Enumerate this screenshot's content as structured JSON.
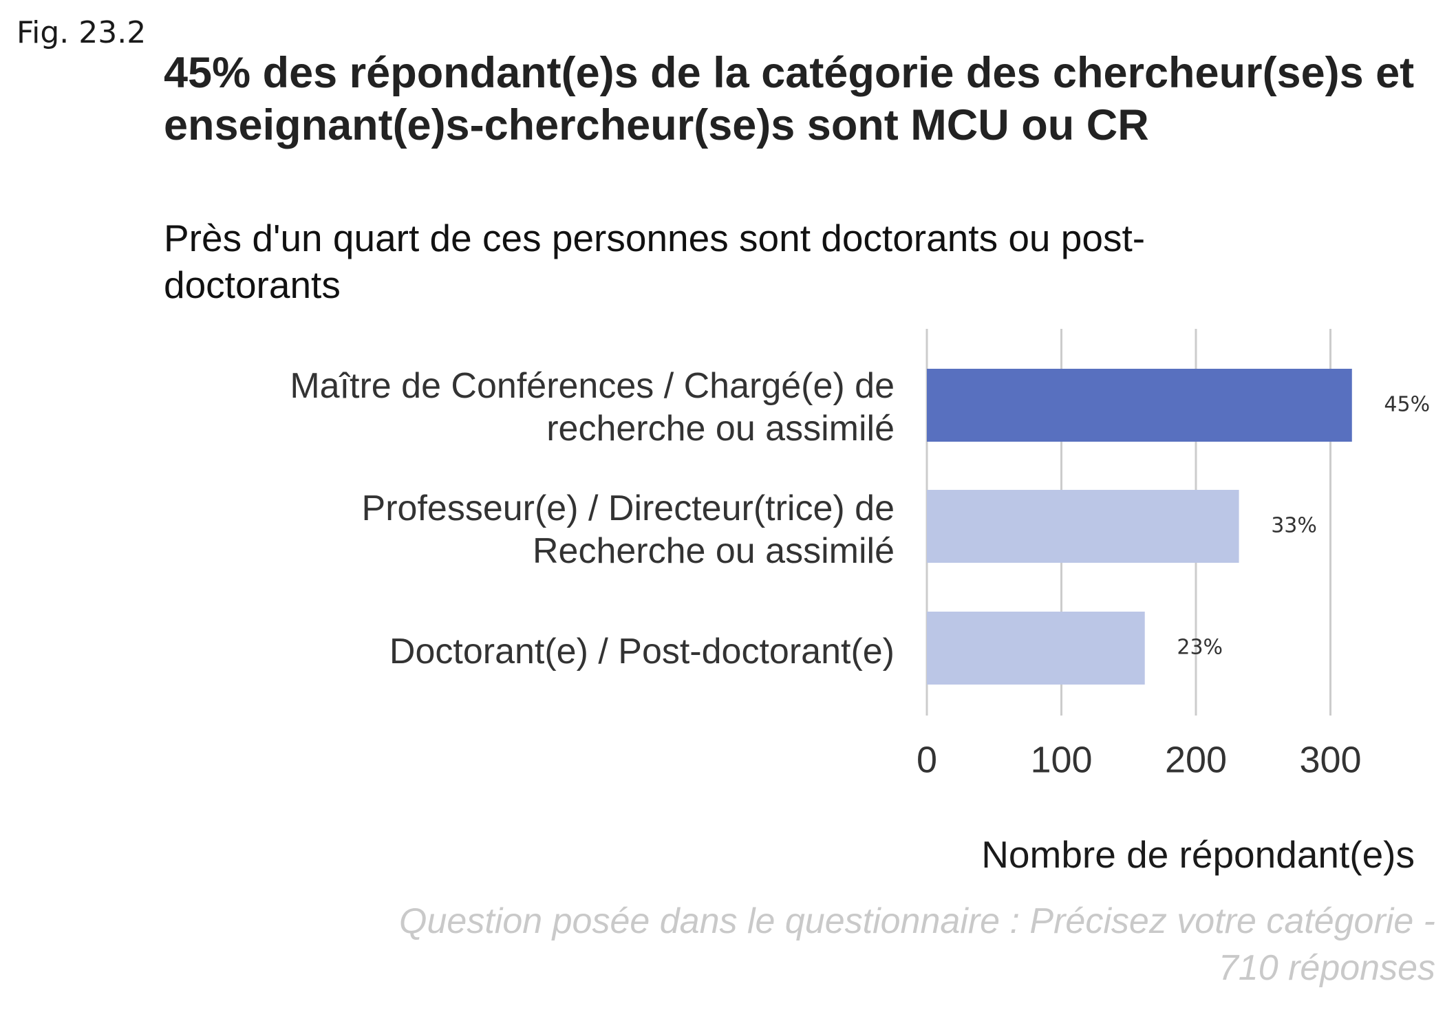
{
  "figure_label": "Fig. 23.2",
  "caption": {
    "line1": "Question posée dans le questionnaire : Précisez votre catégorie -",
    "line2": "710 réponses"
  },
  "colors": {
    "highlight": "#5870BF",
    "default": "#BBC6E6",
    "grid": "#CCCCCC",
    "text": "#333333"
  },
  "chart_data": {
    "type": "bar",
    "orientation": "horizontal",
    "title": "45% des répondant(e)s de la catégorie des chercheur(se)s et enseignant(e)s-chercheur(se)s sont MCU ou CR",
    "subtitle": "Près d'un quart de ces personnes sont doctorants ou post-doctorants",
    "xlabel": "Nombre de répondant(e)s",
    "xlim": [
      0,
      320
    ],
    "xticks": [
      0,
      100,
      200,
      300
    ],
    "grid": true,
    "categories": [
      {
        "lines": [
          "Maître de Conférences / Chargé(e) de",
          "recherche ou assimilé"
        ],
        "value": 316,
        "label": "45%",
        "highlight": true
      },
      {
        "lines": [
          "Professeur(e) / Directeur(trice) de",
          "Recherche ou assimilé"
        ],
        "value": 232,
        "label": "33%",
        "highlight": false
      },
      {
        "lines": [
          "Doctorant(e) / Post-doctorant(e)"
        ],
        "value": 162,
        "label": "23%",
        "highlight": false
      }
    ]
  }
}
